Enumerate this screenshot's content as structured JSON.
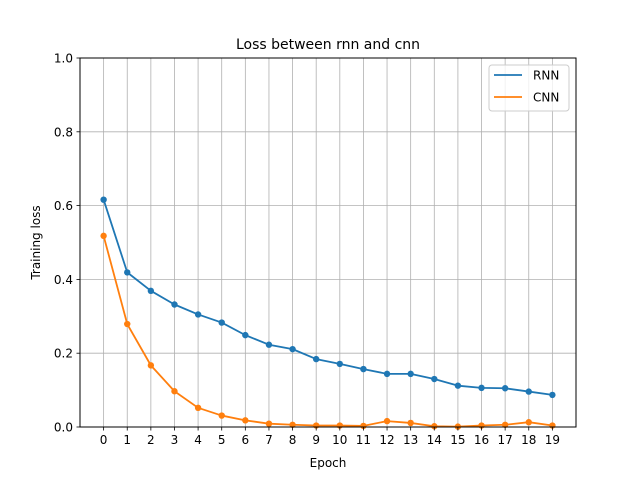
{
  "chart_data": {
    "type": "line",
    "title": "Loss between rnn and cnn",
    "xlabel": "Epoch",
    "ylabel": "Training loss",
    "x": [
      0,
      1,
      2,
      3,
      4,
      5,
      6,
      7,
      8,
      9,
      10,
      11,
      12,
      13,
      14,
      15,
      16,
      17,
      18,
      19
    ],
    "xlim": [
      -1,
      20
    ],
    "ylim": [
      0,
      1
    ],
    "yticks": [
      "0.0",
      "0.2",
      "0.4",
      "0.6",
      "0.8",
      "1.0"
    ],
    "grid": true,
    "legend_position": "top-right",
    "series": [
      {
        "name": "RNN",
        "color": "#1f77b4",
        "marker": "circle",
        "values": [
          0.616,
          0.419,
          0.369,
          0.332,
          0.305,
          0.283,
          0.249,
          0.223,
          0.211,
          0.184,
          0.171,
          0.157,
          0.144,
          0.144,
          0.13,
          0.112,
          0.106,
          0.105,
          0.096,
          0.087
        ]
      },
      {
        "name": "CNN",
        "color": "#ff7f0e",
        "marker": "circle",
        "values": [
          0.518,
          0.279,
          0.167,
          0.097,
          0.052,
          0.031,
          0.018,
          0.009,
          0.006,
          0.004,
          0.004,
          0.003,
          0.016,
          0.011,
          0.002,
          0.001,
          0.004,
          0.006,
          0.013,
          0.004
        ]
      }
    ]
  }
}
